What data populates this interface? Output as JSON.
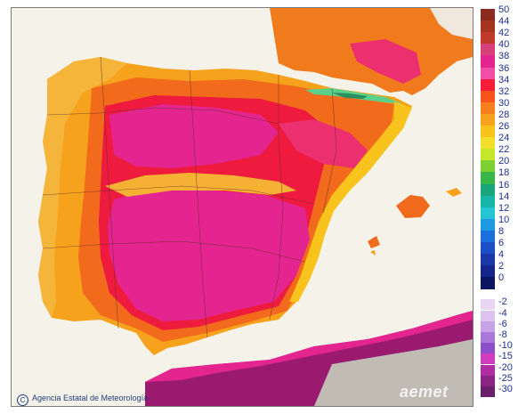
{
  "map": {
    "region": "Iberian Peninsula and Balearic Islands",
    "credit": "Agencia Estatal de Meteorología",
    "logo_text": "aemet",
    "colors": {
      "sea": "#f5f2ea",
      "mild": "#f7a21c",
      "warm": "#f06b1b",
      "hot": "#ee1b3f",
      "very_hot": "#e4258f",
      "extreme": "#c41f7a",
      "cool_high": "#5ad08a",
      "cool_peak": "#2a8f5f",
      "africa_dark": "#9a1a6f",
      "africa_light": "#d9d6d0"
    }
  },
  "legend": {
    "positive": [
      {
        "label": "50",
        "color": "#8b2a1f"
      },
      {
        "label": "44",
        "color": "#a5331f"
      },
      {
        "label": "42",
        "color": "#c0392b"
      },
      {
        "label": "40",
        "color": "#d8407a"
      },
      {
        "label": "38",
        "color": "#e4258f"
      },
      {
        "label": "36",
        "color": "#f14fa6"
      },
      {
        "label": "34",
        "color": "#f71d3a"
      },
      {
        "label": "32",
        "color": "#f5541b"
      },
      {
        "label": "30",
        "color": "#f77f1e"
      },
      {
        "label": "28",
        "color": "#f7a21c"
      },
      {
        "label": "26",
        "color": "#f7c31c"
      },
      {
        "label": "24",
        "color": "#f2df2a"
      },
      {
        "label": "22",
        "color": "#c6e62a"
      },
      {
        "label": "20",
        "color": "#7ed131"
      },
      {
        "label": "18",
        "color": "#39b54a"
      },
      {
        "label": "16",
        "color": "#18a67a"
      },
      {
        "label": "14",
        "color": "#17b6a8"
      },
      {
        "label": "12",
        "color": "#25c3d6"
      },
      {
        "label": "10",
        "color": "#1e9be0"
      },
      {
        "label": "8",
        "color": "#1a6fd8"
      },
      {
        "label": "6",
        "color": "#1d4fc4"
      },
      {
        "label": "4",
        "color": "#1a38a8"
      },
      {
        "label": "2",
        "color": "#14268a"
      },
      {
        "label": "0",
        "color": "#0b1660"
      }
    ],
    "negative": [
      {
        "label": "-2",
        "color": "#e8d6f4"
      },
      {
        "label": "-4",
        "color": "#dcc3ef"
      },
      {
        "label": "-6",
        "color": "#c7a2e6"
      },
      {
        "label": "-8",
        "color": "#a978d8"
      },
      {
        "label": "-10",
        "color": "#8c4fc9"
      },
      {
        "label": "-15",
        "color": "#d03dbf"
      },
      {
        "label": "-20",
        "color": "#b12da3"
      },
      {
        "label": "-25",
        "color": "#8a2484"
      },
      {
        "label": "-30",
        "color": "#6a1f6b"
      }
    ]
  }
}
